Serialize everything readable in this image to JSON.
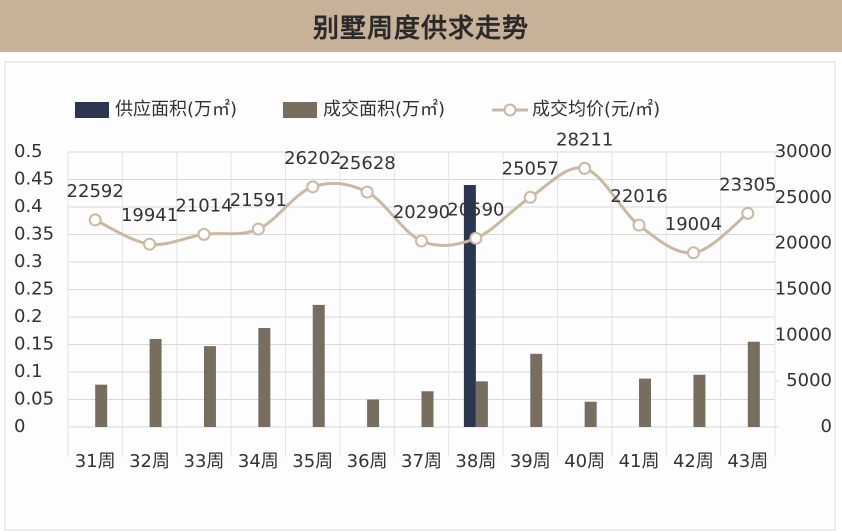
{
  "chart_data": {
    "type": "bar",
    "title": "别墅周度供求走势",
    "categories": [
      "31周",
      "32周",
      "33周",
      "34周",
      "35周",
      "36周",
      "37周",
      "38周",
      "39周",
      "40周",
      "41周",
      "42周",
      "43周"
    ],
    "series": [
      {
        "name": "供应面积(万㎡)",
        "type": "bar",
        "color": "#2b3650",
        "values": [
          null,
          null,
          null,
          null,
          null,
          null,
          null,
          0.44,
          null,
          null,
          null,
          null,
          null
        ]
      },
      {
        "name": "成交面积(万㎡)",
        "type": "bar",
        "color": "#786e5f",
        "values": [
          0.077,
          0.16,
          0.147,
          0.18,
          0.222,
          0.05,
          0.065,
          0.083,
          0.133,
          0.046,
          0.088,
          0.095,
          0.155
        ]
      },
      {
        "name": "成交均价(元/㎡)",
        "type": "line",
        "axis": "y2",
        "color": "#c9b9a2",
        "values": [
          22592,
          19941,
          21014,
          21591,
          26202,
          25628,
          20290,
          20590,
          25057,
          28211,
          22016,
          19004,
          23305
        ]
      }
    ],
    "ylim": [
      0,
      0.5
    ],
    "yticks": [
      0,
      0.05,
      0.1,
      0.15,
      0.2,
      0.25,
      0.3,
      0.35,
      0.4,
      0.45,
      0.5
    ],
    "y2lim": [
      0,
      30000
    ],
    "y2ticks": [
      0,
      5000,
      10000,
      15000,
      20000,
      25000,
      30000
    ],
    "grid": true
  }
}
